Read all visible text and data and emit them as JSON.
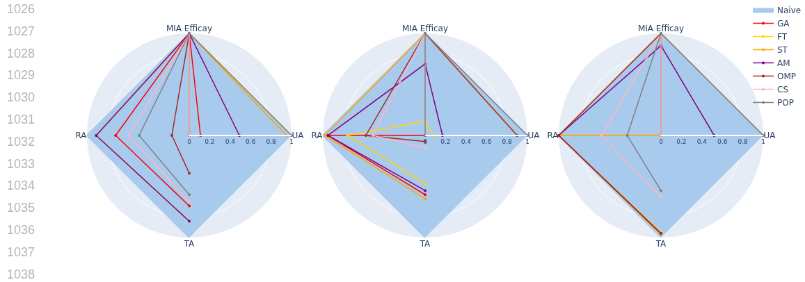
{
  "chart_data": [
    {
      "type": "radar",
      "categories": [
        "MIA Efficay",
        "UA",
        "TA",
        "RA"
      ],
      "ylim": [
        0,
        1
      ],
      "yticks": [
        0,
        0.2,
        0.4,
        0.6,
        0.8,
        1
      ],
      "grid": true,
      "legend": "top right",
      "marker": "circle",
      "annotations": [
        "1026",
        "1027",
        "1028",
        "1029",
        "1030",
        "1031",
        "1032",
        "1033",
        "1034",
        "1035",
        "1036",
        "1037",
        "1038"
      ],
      "series": [
        {
          "name": "Naive",
          "type": "area",
          "color": "#a8caed",
          "marker": "none",
          "values": [
            1,
            1,
            1,
            1
          ]
        },
        {
          "name": "GA",
          "color": "#ff0000",
          "values": [
            1,
            0.11,
            0.69,
            0.72
          ]
        },
        {
          "name": "FT",
          "color": "#ffd700",
          "values": [
            1,
            1,
            0.84,
            0.91
          ]
        },
        {
          "name": "ST",
          "color": "#ffa500",
          "values": [
            1,
            0.95,
            0,
            0
          ]
        },
        {
          "name": "AM",
          "color": "#800080",
          "values": [
            1,
            0.49,
            0.84,
            0.91
          ]
        },
        {
          "name": "OMP",
          "color": "#a52a2a",
          "values": [
            1,
            0,
            0.37,
            0.17
          ]
        },
        {
          "name": "CS",
          "color": "#ffb6c1",
          "values": [
            1,
            0,
            0.65,
            0.59
          ]
        },
        {
          "name": "POP",
          "color": "#808080",
          "values": [
            1,
            1,
            0.58,
            0.49
          ]
        }
      ]
    },
    {
      "type": "radar",
      "categories": [
        "MIA Efficay",
        "UA",
        "TA",
        "RA"
      ],
      "ylim": [
        0,
        1
      ],
      "yticks": [
        0,
        0.2,
        0.4,
        0.6,
        0.8,
        1
      ],
      "grid": true,
      "marker": "circle",
      "series": [
        {
          "type": "area",
          "color": "#a8caed",
          "marker": "none",
          "values": [
            1,
            1,
            1,
            1
          ]
        },
        {
          "color": "#ff0000",
          "values": [
            0,
            0,
            0.58,
            0.95
          ]
        },
        {
          "color": "#ffd700",
          "values": [
            0.14,
            0.08,
            0.47,
            0.76
          ]
        },
        {
          "color": "#ffa500",
          "values": [
            1,
            0.9,
            0.62,
            0.98
          ]
        },
        {
          "color": "#800080",
          "values": [
            0.7,
            0.17,
            0.54,
            0.95
          ]
        },
        {
          "color": "#a52a2a",
          "values": [
            1,
            0.9,
            0.06,
            0.58
          ]
        },
        {
          "color": "#ffb6c1",
          "values": [
            1,
            0,
            0.12,
            0.51
          ]
        },
        {
          "color": "#808080",
          "values": [
            1,
            1,
            0,
            0
          ]
        }
      ]
    },
    {
      "type": "radar",
      "categories": [
        "MIA Efficay",
        "UA",
        "TA",
        "RA"
      ],
      "ylim": [
        0,
        1
      ],
      "yticks": [
        0,
        0.2,
        0.4,
        0.6,
        0.8,
        1
      ],
      "grid": true,
      "marker": "circle",
      "series": [
        {
          "type": "area",
          "color": "#a8caed",
          "marker": "none",
          "values": [
            1,
            1,
            1,
            1
          ]
        },
        {
          "color": "#ff0000",
          "values": [
            0,
            0,
            0.96,
            1
          ]
        },
        {
          "color": "#ffd700",
          "values": [
            0,
            0,
            0.95,
            1
          ]
        },
        {
          "color": "#ffa500",
          "values": [
            1,
            1,
            0.97,
            1
          ]
        },
        {
          "color": "#800080",
          "values": [
            0.88,
            0.52,
            0.96,
            1
          ]
        },
        {
          "color": "#a52a2a",
          "values": [
            1,
            0,
            0.96,
            1
          ]
        },
        {
          "color": "#ffb6c1",
          "values": [
            1,
            0,
            0.6,
            0.58
          ]
        },
        {
          "color": "#808080",
          "values": [
            1,
            1,
            0.54,
            0.33
          ]
        }
      ]
    }
  ]
}
